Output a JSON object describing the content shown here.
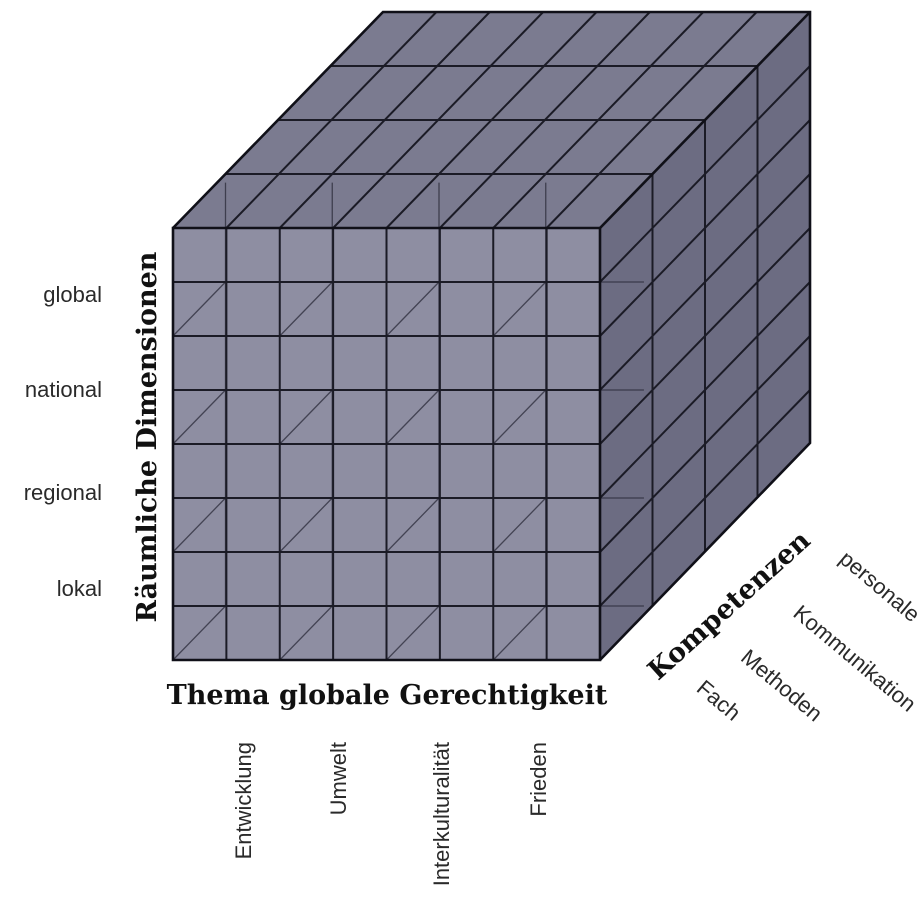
{
  "vertical_axis": {
    "title": "Räumliche Dimensionen",
    "levels": [
      "global",
      "national",
      "regional",
      "lokal"
    ]
  },
  "horizontal_axis": {
    "title": "Thema globale Gerechtigkeit",
    "levels": [
      "Entwicklung",
      "Umwelt",
      "Interkulturalität",
      "Frieden"
    ]
  },
  "depth_axis": {
    "title": "Kompetenzen",
    "levels": [
      "Fach",
      "Methoden",
      "Kommunikation",
      "personale"
    ]
  },
  "colors": {
    "front_face": "#8e8ea2",
    "top_face": "#7b7b90",
    "side_face": "#6c6c82",
    "lines": "#1b1b26"
  }
}
